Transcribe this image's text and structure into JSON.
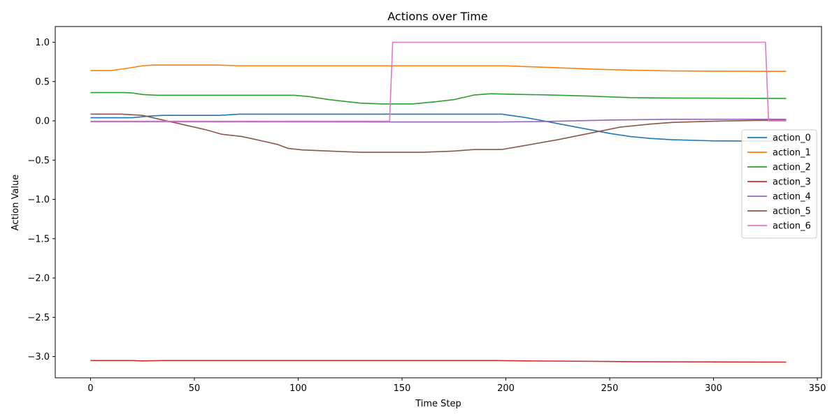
{
  "chart_data": {
    "type": "line",
    "title": "Actions over Time",
    "xlabel": "Time Step",
    "ylabel": "Action Value",
    "xlim": [
      -17,
      352
    ],
    "ylim": [
      -3.27,
      1.2
    ],
    "xticks": [
      0,
      50,
      100,
      150,
      200,
      250,
      300,
      350
    ],
    "yticks": [
      1.0,
      0.5,
      0.0,
      -0.5,
      -1.0,
      -1.5,
      -2.0,
      -2.5,
      -3.0
    ],
    "xtick_labels": [
      "0",
      "50",
      "100",
      "150",
      "200",
      "250",
      "300",
      "350"
    ],
    "ytick_labels": [
      "1.0",
      "0.5",
      "0.0",
      "−0.5",
      "−1.0",
      "−1.5",
      "−2.0",
      "−2.5",
      "−3.0"
    ],
    "grid": false,
    "legend_position": "center-right",
    "series": [
      {
        "name": "action_0",
        "color": "#1f77b4",
        "points": [
          [
            0,
            0.04
          ],
          [
            20,
            0.04
          ],
          [
            28,
            0.06
          ],
          [
            35,
            0.07
          ],
          [
            62,
            0.07
          ],
          [
            72,
            0.085
          ],
          [
            150,
            0.085
          ],
          [
            198,
            0.085
          ],
          [
            210,
            0.04
          ],
          [
            220,
            -0.01
          ],
          [
            230,
            -0.06
          ],
          [
            240,
            -0.11
          ],
          [
            250,
            -0.16
          ],
          [
            260,
            -0.2
          ],
          [
            270,
            -0.225
          ],
          [
            280,
            -0.24
          ],
          [
            300,
            -0.255
          ],
          [
            320,
            -0.258
          ],
          [
            335,
            -0.26
          ]
        ]
      },
      {
        "name": "action_1",
        "color": "#ff7f0e",
        "points": [
          [
            0,
            0.64
          ],
          [
            10,
            0.64
          ],
          [
            18,
            0.67
          ],
          [
            25,
            0.7
          ],
          [
            30,
            0.71
          ],
          [
            62,
            0.71
          ],
          [
            72,
            0.7
          ],
          [
            150,
            0.7
          ],
          [
            200,
            0.7
          ],
          [
            210,
            0.69
          ],
          [
            225,
            0.675
          ],
          [
            245,
            0.655
          ],
          [
            260,
            0.645
          ],
          [
            280,
            0.635
          ],
          [
            300,
            0.632
          ],
          [
            335,
            0.63
          ]
        ]
      },
      {
        "name": "action_2",
        "color": "#2ca02c",
        "points": [
          [
            0,
            0.36
          ],
          [
            16,
            0.36
          ],
          [
            20,
            0.355
          ],
          [
            25,
            0.335
          ],
          [
            32,
            0.325
          ],
          [
            98,
            0.325
          ],
          [
            105,
            0.31
          ],
          [
            115,
            0.27
          ],
          [
            125,
            0.24
          ],
          [
            130,
            0.225
          ],
          [
            140,
            0.215
          ],
          [
            155,
            0.215
          ],
          [
            165,
            0.24
          ],
          [
            175,
            0.27
          ],
          [
            185,
            0.33
          ],
          [
            193,
            0.345
          ],
          [
            200,
            0.34
          ],
          [
            220,
            0.33
          ],
          [
            240,
            0.315
          ],
          [
            260,
            0.295
          ],
          [
            280,
            0.29
          ],
          [
            335,
            0.285
          ]
        ]
      },
      {
        "name": "action_3",
        "color": "#d62728",
        "points": [
          [
            0,
            -3.05
          ],
          [
            20,
            -3.05
          ],
          [
            25,
            -3.055
          ],
          [
            35,
            -3.05
          ],
          [
            100,
            -3.05
          ],
          [
            150,
            -3.05
          ],
          [
            195,
            -3.05
          ],
          [
            210,
            -3.055
          ],
          [
            240,
            -3.06
          ],
          [
            260,
            -3.065
          ],
          [
            300,
            -3.068
          ],
          [
            335,
            -3.07
          ]
        ]
      },
      {
        "name": "action_4",
        "color": "#9467bd",
        "points": [
          [
            0,
            -0.01
          ],
          [
            150,
            -0.015
          ],
          [
            195,
            -0.015
          ],
          [
            215,
            -0.01
          ],
          [
            250,
            0.01
          ],
          [
            280,
            0.02
          ],
          [
            335,
            0.02
          ]
        ]
      },
      {
        "name": "action_5",
        "color": "#8c564b",
        "points": [
          [
            0,
            0.085
          ],
          [
            15,
            0.085
          ],
          [
            25,
            0.07
          ],
          [
            35,
            0.01
          ],
          [
            45,
            -0.05
          ],
          [
            55,
            -0.11
          ],
          [
            63,
            -0.17
          ],
          [
            73,
            -0.2
          ],
          [
            80,
            -0.24
          ],
          [
            90,
            -0.3
          ],
          [
            95,
            -0.35
          ],
          [
            102,
            -0.37
          ],
          [
            120,
            -0.39
          ],
          [
            130,
            -0.4
          ],
          [
            160,
            -0.4
          ],
          [
            175,
            -0.385
          ],
          [
            185,
            -0.365
          ],
          [
            198,
            -0.365
          ],
          [
            210,
            -0.31
          ],
          [
            225,
            -0.24
          ],
          [
            240,
            -0.16
          ],
          [
            255,
            -0.08
          ],
          [
            270,
            -0.04
          ],
          [
            280,
            -0.02
          ],
          [
            300,
            -0.005
          ],
          [
            320,
            0.005
          ],
          [
            335,
            0.005
          ]
        ]
      },
      {
        "name": "action_6",
        "color": "#e377c2",
        "points": [
          [
            0,
            -0.005
          ],
          [
            144,
            -0.005
          ],
          [
            145.5,
            1.0
          ],
          [
            325,
            1.0
          ],
          [
            326.5,
            0.0
          ],
          [
            335,
            0.0
          ]
        ]
      }
    ]
  }
}
